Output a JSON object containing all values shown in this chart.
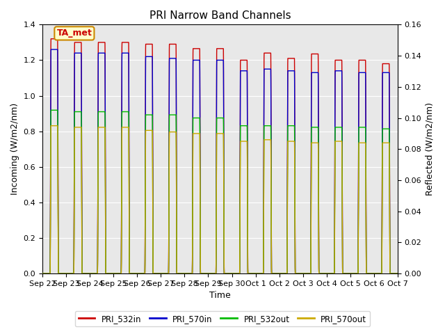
{
  "title": "PRI Narrow Band Channels",
  "xlabel": "Time",
  "ylabel_left": "Incoming (W/m2/nm)",
  "ylabel_right": "Reflected (W/m2/nm)",
  "ylim_left": [
    0,
    1.4
  ],
  "ylim_right": [
    0,
    0.16
  ],
  "annotation_text": "TA_met",
  "annotation_bg": "#ffffcc",
  "annotation_border": "#cc8800",
  "annotation_text_color": "#cc0000",
  "xtick_labels": [
    "Sep 22",
    "Sep 23",
    "Sep 24",
    "Sep 25",
    "Sep 26",
    "Sep 27",
    "Sep 28",
    "Sep 29",
    "Sep 30",
    "Oct 1",
    "Oct 2",
    "Oct 3",
    "Oct 4",
    "Oct 5",
    "Oct 6",
    "Oct 7"
  ],
  "bg_color": "#e8e8e8",
  "grid_color": "#ffffff",
  "series": {
    "PRI_532in": {
      "color": "#cc0000",
      "lw": 1.0
    },
    "PRI_570in": {
      "color": "#0000cc",
      "lw": 1.0
    },
    "PRI_532out": {
      "color": "#00bb00",
      "lw": 1.0
    },
    "PRI_570out": {
      "color": "#ccaa00",
      "lw": 1.0
    }
  },
  "num_peaks": 15,
  "peak_heights_532in": [
    1.32,
    1.3,
    1.3,
    1.3,
    1.29,
    1.29,
    1.265,
    1.265,
    1.2,
    1.24,
    1.21,
    1.235,
    1.2,
    1.2,
    1.18
  ],
  "peak_heights_570in": [
    1.26,
    1.24,
    1.24,
    1.24,
    1.22,
    1.21,
    1.2,
    1.2,
    1.14,
    1.15,
    1.14,
    1.13,
    1.14,
    1.13,
    1.13
  ],
  "peak_heights_532out": [
    0.105,
    0.104,
    0.104,
    0.104,
    0.102,
    0.102,
    0.1,
    0.1,
    0.095,
    0.095,
    0.095,
    0.094,
    0.094,
    0.094,
    0.093
  ],
  "peak_heights_570out": [
    0.095,
    0.094,
    0.094,
    0.094,
    0.092,
    0.091,
    0.09,
    0.09,
    0.085,
    0.086,
    0.085,
    0.084,
    0.085,
    0.084,
    0.084
  ],
  "figsize": [
    6.4,
    4.8
  ],
  "dpi": 100
}
